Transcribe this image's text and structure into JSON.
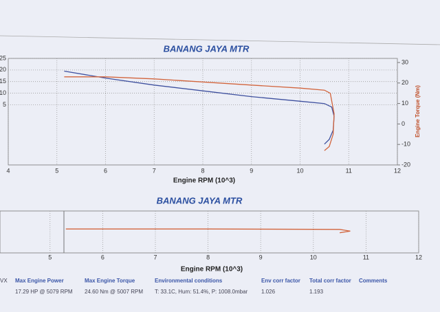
{
  "chart_data": [
    {
      "type": "line",
      "title": "BANANG JAYA MTR",
      "x_label": "Engine RPM (10^3)",
      "y2_label": "Engine Torque (Nm)",
      "xlim": [
        4,
        12
      ],
      "xticks": [
        4,
        5,
        6,
        7,
        8,
        9,
        10,
        11,
        12
      ],
      "ylim": [
        -21,
        25
      ],
      "yticks": [
        5,
        10,
        15,
        20,
        25
      ],
      "y2lim": [
        -20,
        32
      ],
      "y2ticks": [
        -20,
        -10,
        0,
        10,
        20,
        30
      ],
      "grid": true,
      "series": [
        {
          "color": "#3d4f9e",
          "axis": "y",
          "x": [
            5.15,
            6,
            7,
            8,
            9,
            10,
            10.5,
            10.65,
            10.7,
            10.68,
            10.6,
            10.5
          ],
          "values": [
            19.5,
            16.5,
            13.5,
            11,
            8.5,
            6.5,
            5.5,
            4,
            0,
            -6,
            -10,
            -12
          ]
        },
        {
          "color": "#d2643c",
          "axis": "y2",
          "x": [
            5.15,
            6,
            7,
            8,
            9,
            10,
            10.5,
            10.62,
            10.7,
            10.68,
            10.6,
            10.5
          ],
          "values": [
            23,
            23,
            22,
            20.5,
            19,
            17.5,
            16.5,
            15,
            5,
            -5,
            -11,
            -13
          ]
        }
      ]
    },
    {
      "type": "line",
      "title": "BANANG JAYA MTR",
      "x_label": "Engine RPM (10^3)",
      "xlim": [
        4.05,
        12
      ],
      "xticks": [
        5,
        6,
        7,
        8,
        9,
        10,
        11,
        12
      ],
      "ylim": [
        0,
        1
      ],
      "grid": true,
      "series": [
        {
          "color": "#d2643c",
          "axis": "y",
          "x": [
            5.3,
            8,
            10.5,
            10.7,
            10.5
          ],
          "values": [
            0.57,
            0.57,
            0.56,
            0.52,
            0.48
          ]
        }
      ]
    }
  ],
  "table": {
    "header": [
      "Max Engine Power",
      "Max Engine Torque",
      "Environmental conditions",
      "Env corr factor",
      "Total corr factor",
      "Comments"
    ],
    "row": [
      "VX",
      "17.29 HP @ 5079 RPM",
      "24.60 Nm @ 5007 RPM",
      "T: 33.1C, Hum: 51.4%, P: 1008.0mbar",
      "1.026",
      "1.193"
    ]
  }
}
